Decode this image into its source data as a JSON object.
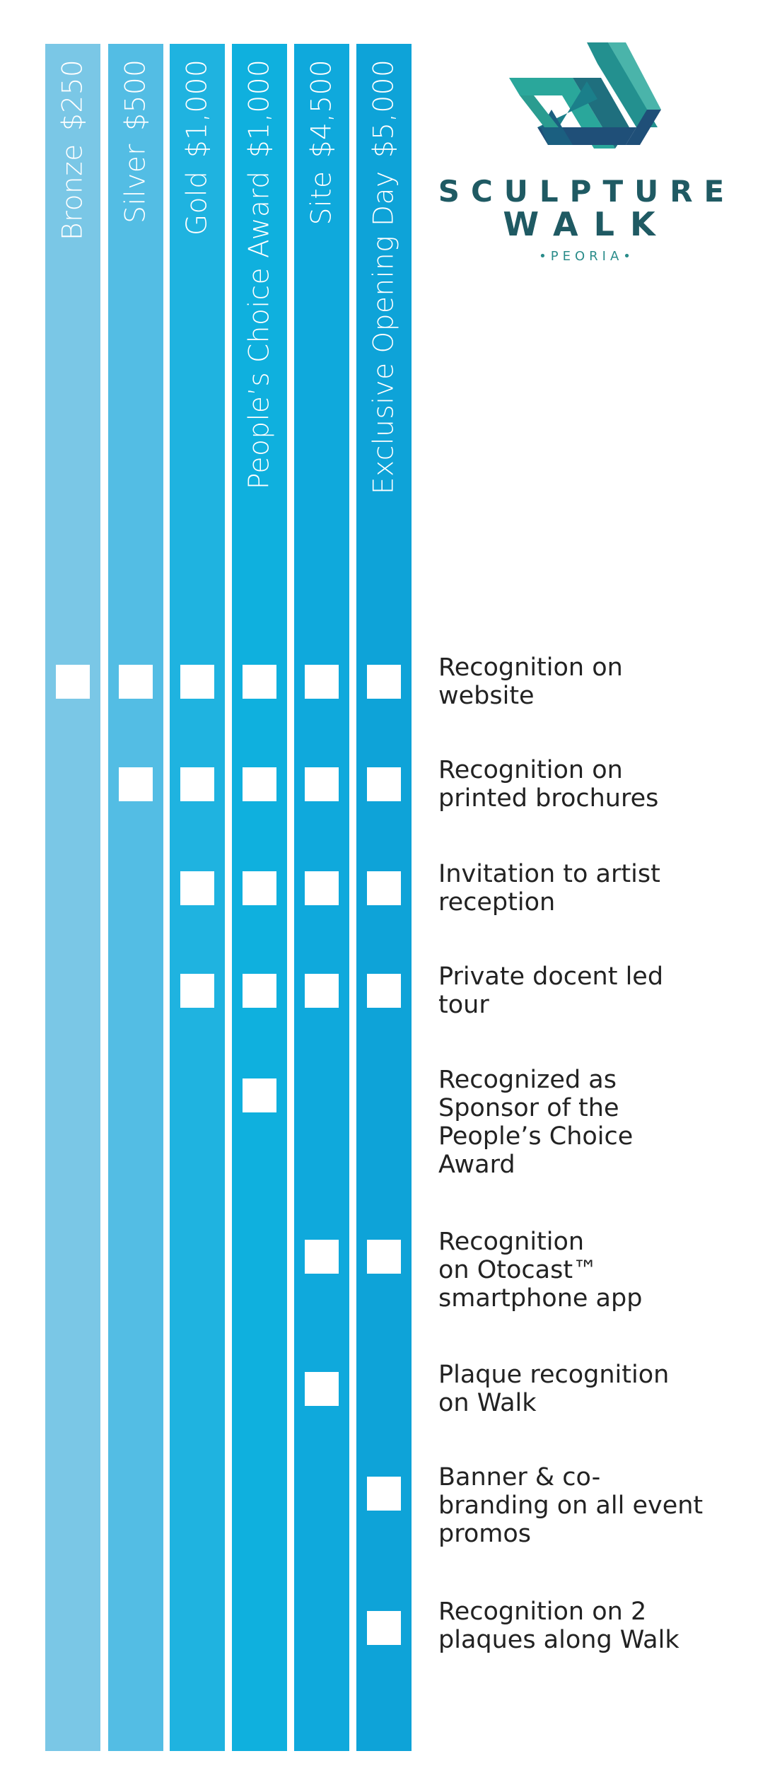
{
  "logo": {
    "line1": "SCULPTURE",
    "line2": "WALK",
    "line3": "•PEORIA•",
    "colors": [
      "#2aa79b",
      "#1b7f8a",
      "#1f4f78"
    ]
  },
  "columns": [
    {
      "tier": "Bronze",
      "price": "$250",
      "color": "#7ac7e6"
    },
    {
      "tier": "Silver",
      "price": "$500",
      "color": "#53bde4"
    },
    {
      "tier": "Gold",
      "price": "$1,000",
      "color": "#1fb3e0"
    },
    {
      "tier": "People’s Choice Award",
      "price": "$1,000",
      "color": "#0fb0de"
    },
    {
      "tier": "Site",
      "price": "$4,500",
      "color": "#0fa9dc"
    },
    {
      "tier": "Exclusive Opening Day",
      "price": "$5,000",
      "color": "#0ea3d8"
    }
  ],
  "benefits": [
    {
      "label": "Recognition on\nwebsite",
      "tiers": [
        0,
        1,
        2,
        3,
        4,
        5
      ]
    },
    {
      "label": "Recognition on\nprinted brochures",
      "tiers": [
        1,
        2,
        3,
        4,
        5
      ]
    },
    {
      "label": "Invitation to artist\nreception",
      "tiers": [
        2,
        3,
        4,
        5
      ]
    },
    {
      "label": "Private docent led\ntour",
      "tiers": [
        2,
        3,
        4,
        5
      ]
    },
    {
      "label": "Recognized as\nSponsor of the\nPeople’s Choice\nAward",
      "tiers": [
        3
      ]
    },
    {
      "label": "Recognition\non Otocast™\nsmartphone app",
      "tiers": [
        4,
        5
      ]
    },
    {
      "label": "Plaque recognition\non Walk",
      "tiers": [
        4
      ]
    },
    {
      "label": "Banner & co-\nbranding on all event\npromos",
      "tiers": [
        5
      ]
    },
    {
      "label": "Recognition on 2\nplaques along Walk",
      "tiers": [
        5
      ]
    }
  ]
}
